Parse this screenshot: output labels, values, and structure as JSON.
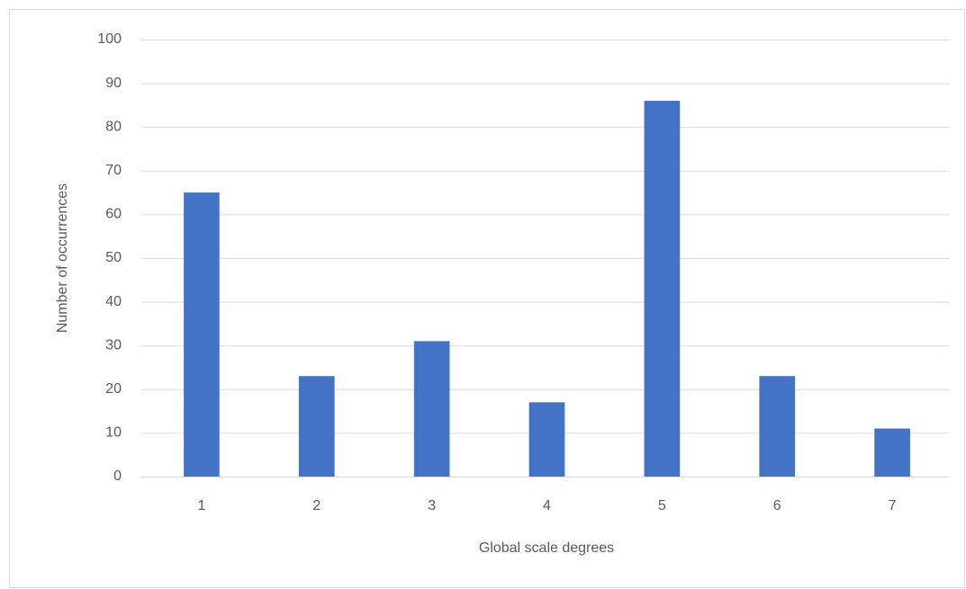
{
  "chart_data": {
    "type": "bar",
    "x_label": "Global scale degrees",
    "y_label": "Number of occurrences",
    "categories": [
      "1",
      "2",
      "3",
      "4",
      "5",
      "6",
      "7"
    ],
    "values": [
      65,
      23,
      31,
      17,
      86,
      23,
      11
    ],
    "color": "#4472c4",
    "ylim": [
      0,
      100
    ],
    "yticks": [
      0,
      10,
      20,
      30,
      40,
      50,
      60,
      70,
      80,
      90,
      100
    ],
    "grid": true
  }
}
